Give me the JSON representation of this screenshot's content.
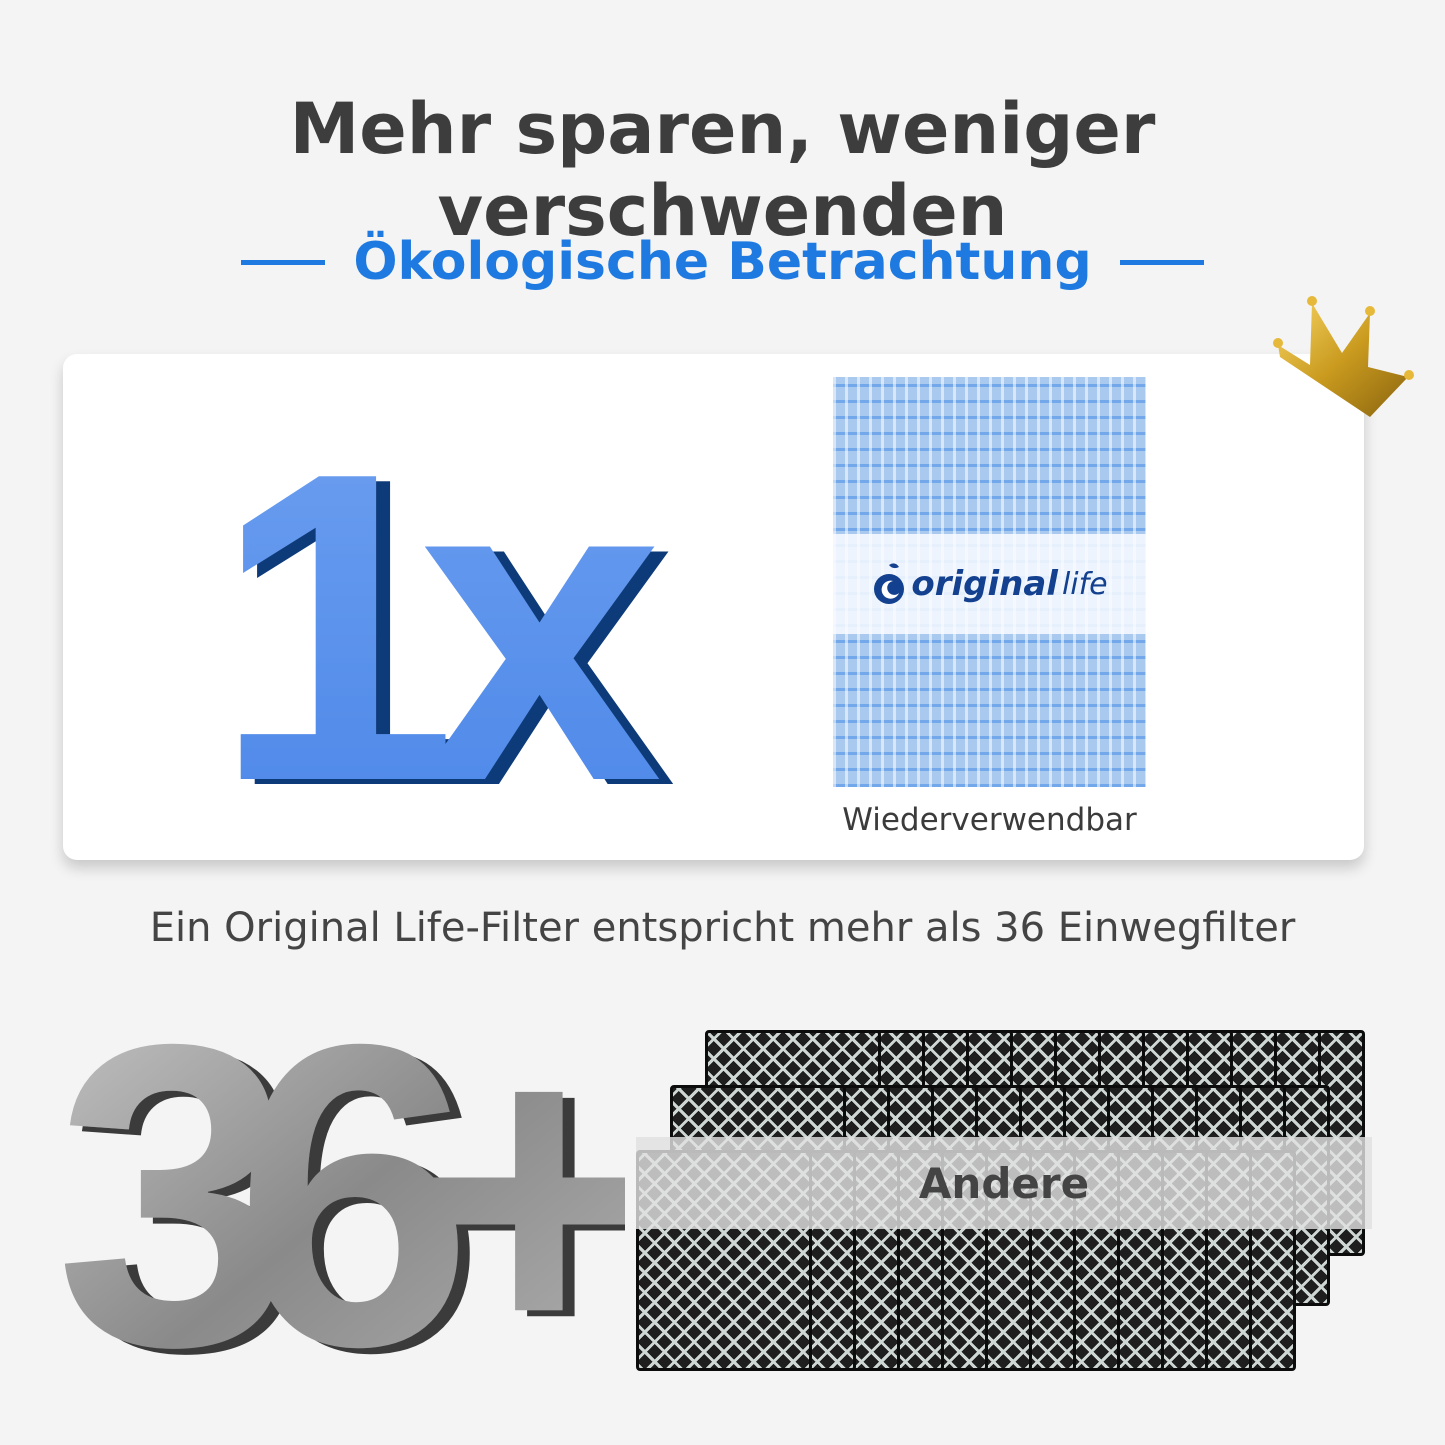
{
  "header": {
    "title": "Mehr sparen, weniger verschwenden",
    "subtitle": "Ökologische Betrachtung"
  },
  "comparison_card": {
    "quantity": "1x",
    "product_logo": {
      "brand": "original",
      "brand_suffix": "life"
    },
    "product_label": "Wiederverwendbar"
  },
  "caption": "Ein Original Life-Filter entspricht mehr als 36 Einwegfilter",
  "others": {
    "quantity": "36+",
    "label": "Andere"
  },
  "colors": {
    "accent": "#1e7ae0",
    "title": "#3d3d3d",
    "logo": "#13418f"
  },
  "icons": [
    "crown-icon",
    "brand-logo-icon"
  ]
}
